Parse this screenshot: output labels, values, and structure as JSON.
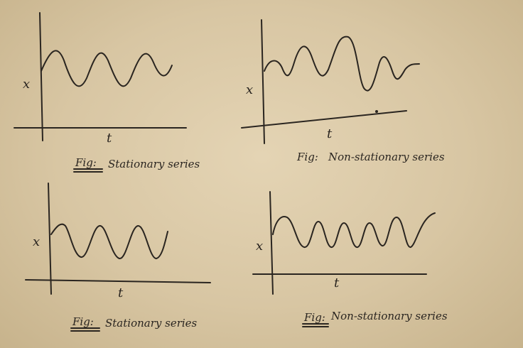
{
  "panels": [
    {
      "id": "stationary-1",
      "y_label": "x",
      "x_label": "t",
      "fig_prefix": "Fig:",
      "caption": "Stationary series"
    },
    {
      "id": "non-stationary-1",
      "y_label": "x",
      "x_label": "t",
      "fig_prefix": "Fig:",
      "caption": "Non-stationary series"
    },
    {
      "id": "stationary-2",
      "y_label": "x",
      "x_label": "t",
      "fig_prefix": "Fig:",
      "caption": "Stationary series"
    },
    {
      "id": "non-stationary-2",
      "y_label": "x",
      "x_label": "t",
      "fig_prefix": "Fig:",
      "caption": "Non-stationary series"
    }
  ],
  "colors": {
    "paper": "#dccaa8",
    "ink": "#2a2520"
  }
}
